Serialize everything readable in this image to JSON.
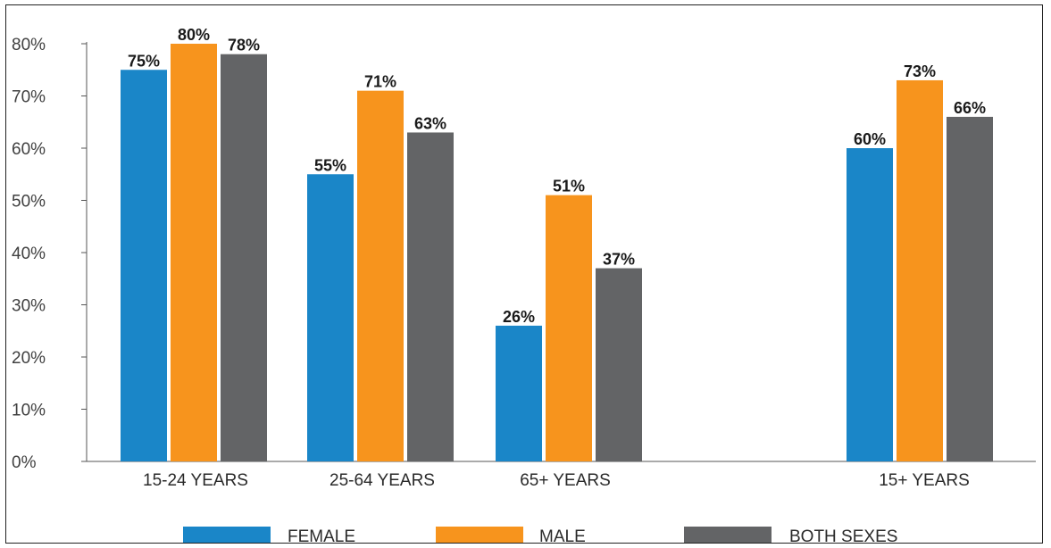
{
  "chart_data": {
    "type": "bar",
    "categories": [
      "15-24 YEARS",
      "25-64 YEARS",
      "65+ YEARS",
      "15+ YEARS"
    ],
    "series": [
      {
        "name": "FEMALE",
        "values": [
          75,
          55,
          26,
          60
        ],
        "color": "#1a86c8"
      },
      {
        "name": "MALE",
        "values": [
          80,
          71,
          51,
          73
        ],
        "color": "#f7941d"
      },
      {
        "name": "BOTH SEXES",
        "values": [
          78,
          63,
          37,
          66
        ],
        "color": "#636466"
      }
    ],
    "value_labels": [
      [
        "75%",
        "55%",
        "26%",
        "60%"
      ],
      [
        "80%",
        "71%",
        "51%",
        "73%"
      ],
      [
        "78%",
        "63%",
        "37%",
        "66%"
      ]
    ],
    "y_ticks": [
      "0%",
      "10%",
      "20%",
      "30%",
      "40%",
      "50%",
      "60%",
      "70%",
      "80%"
    ],
    "ylim": [
      0,
      80
    ],
    "grid": false,
    "legend_position": "bottom",
    "title": "",
    "xlabel": "",
    "ylabel": ""
  }
}
